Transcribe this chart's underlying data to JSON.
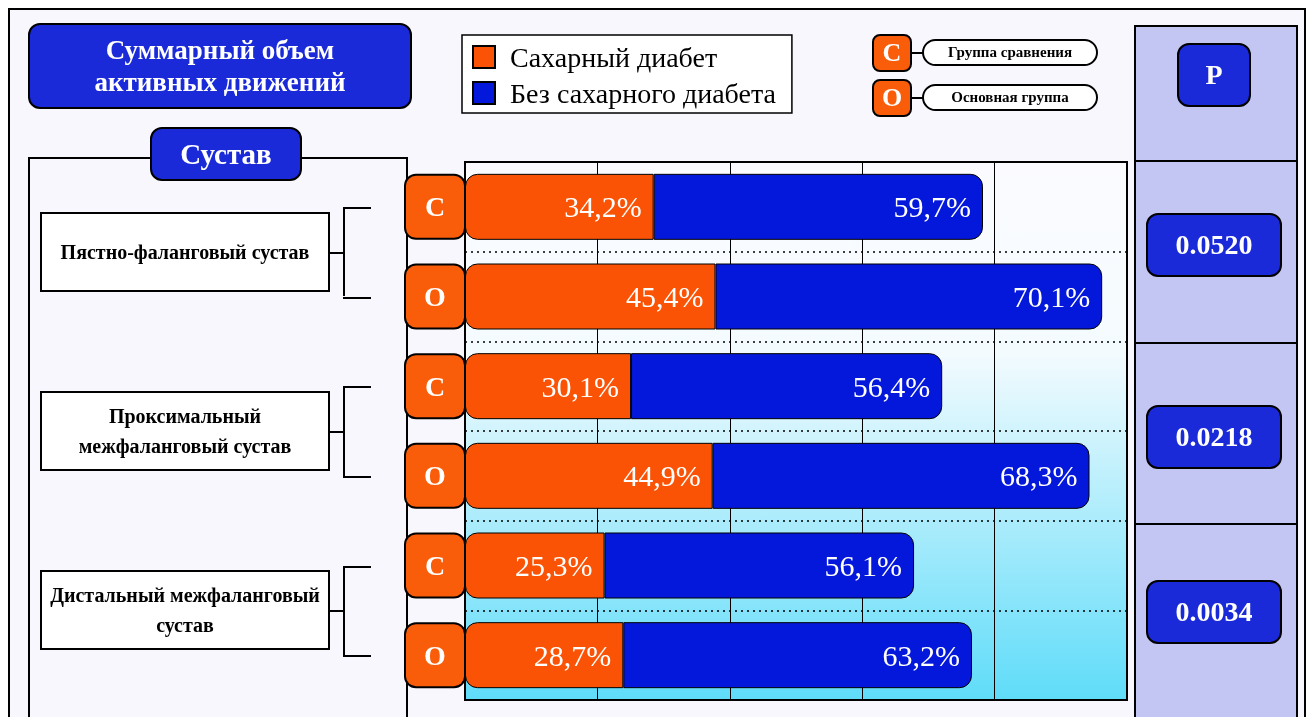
{
  "chart_data": {
    "type": "bar",
    "orientation": "horizontal",
    "stacked": true,
    "title": "Суммарный объем активных движений",
    "categories": [
      "С",
      "О",
      "С",
      "О",
      "С",
      "О"
    ],
    "series": [
      {
        "name": "Сахарный диабет",
        "color": "#fa5305",
        "values": [
          34.2,
          45.4,
          30.1,
          44.9,
          25.3,
          28.7
        ],
        "value_labels": [
          "34,2%",
          "45,4%",
          "30,1%",
          "44,9%",
          "25,3%",
          "28,7%"
        ]
      },
      {
        "name": "Без сахарного диабета",
        "color": "#0418dc",
        "values": [
          59.7,
          70.1,
          56.4,
          68.3,
          56.1,
          63.2
        ],
        "value_labels": [
          "59,7%",
          "70,1%",
          "56,4%",
          "68,3%",
          "56,1%",
          "63,2%"
        ]
      }
    ],
    "xlim": [
      0,
      120
    ],
    "xticks": [
      {
        "value": 0,
        "label": null
      },
      {
        "value": 24,
        "label": null
      },
      {
        "value": 48,
        "label": null
      },
      {
        "value": 72,
        "label": null
      },
      {
        "value": 96,
        "label": null
      },
      {
        "value": 120,
        "label": null
      }
    ],
    "tick_labels": "y",
    "grid": true,
    "legend": "top",
    "annotations": [
      "Группа сравнения",
      "Основная группа",
      "Сустав",
      "Пястно-фаланговый сустав",
      "Проксимальный межфаланговый сустав",
      "Дистальный межфаланговый сустав",
      "P",
      "0.0520",
      "0.0218",
      "0.0034"
    ]
  }
}
